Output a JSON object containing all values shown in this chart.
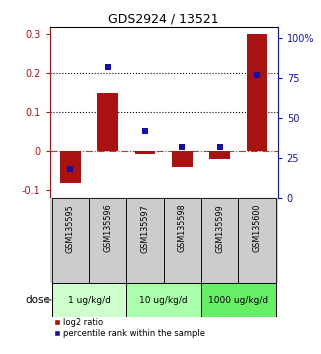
{
  "title": "GDS2924 / 13521",
  "samples": [
    "GSM135595",
    "GSM135596",
    "GSM135597",
    "GSM135598",
    "GSM135599",
    "GSM135600"
  ],
  "log2_ratio": [
    -0.082,
    0.15,
    -0.008,
    -0.042,
    -0.02,
    0.3
  ],
  "percentile_rank": [
    18,
    82,
    42,
    32,
    32,
    77
  ],
  "bar_color": "#aa1111",
  "dot_color": "#1111aa",
  "ylim_left": [
    -0.12,
    0.32
  ],
  "ylim_right": [
    0,
    107
  ],
  "yticks_left": [
    -0.1,
    0.0,
    0.1,
    0.2,
    0.3
  ],
  "yticks_right": [
    0,
    25,
    50,
    75,
    100
  ],
  "ytick_labels_right": [
    "0",
    "25",
    "50",
    "75",
    "100%"
  ],
  "hlines": [
    0.1,
    0.2
  ],
  "zero_line_color": "#cc3333",
  "legend_bar_label": "log2 ratio",
  "legend_dot_label": "percentile rank within the sample",
  "background_color": "#ffffff",
  "plot_bg_color": "#ffffff",
  "sample_box_color": "#cccccc",
  "dose_colors": [
    "#ccffcc",
    "#aaffaa",
    "#66ee66"
  ],
  "dose_labels": [
    "1 ug/kg/d",
    "10 ug/kg/d",
    "1000 ug/kg/d"
  ],
  "dose_label": "dose"
}
